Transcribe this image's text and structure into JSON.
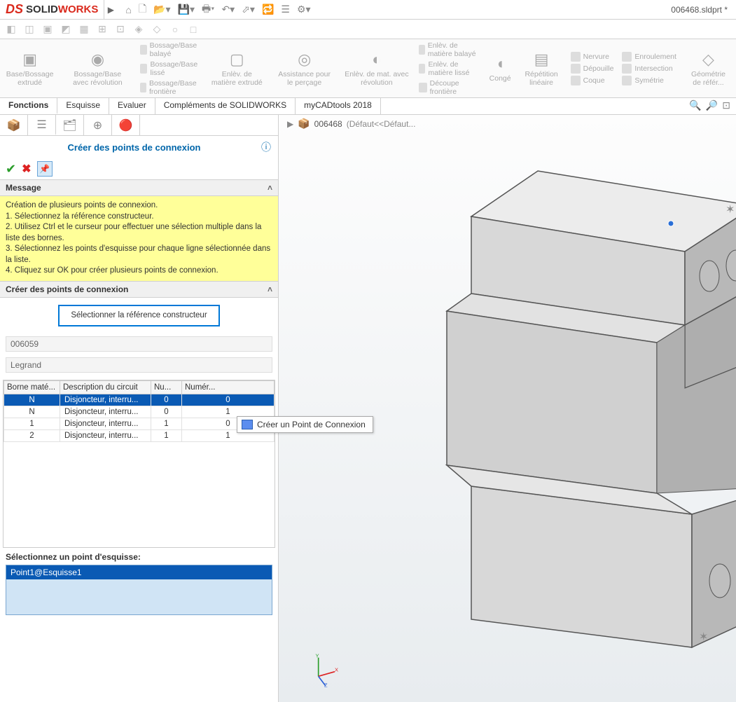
{
  "app": {
    "name_solid": "SOLID",
    "name_works": "WORKS",
    "doc": "006468.sldprt *"
  },
  "ribbon": {
    "groups": [
      {
        "label": "Base/Bossage extrudé"
      },
      {
        "label": "Bossage/Base avec révolution"
      }
    ],
    "lists1": [
      "Bossage/Base balayé",
      "Bossage/Base lissé",
      "Bossage/Base frontière"
    ],
    "groups2": [
      {
        "label": "Enlèv. de matière extrudé"
      },
      {
        "label": "Assistance pour le perçage"
      },
      {
        "label": "Enlèv. de mat. avec révolution"
      }
    ],
    "lists2": [
      "Enlèv. de matière balayé",
      "Enlèv. de matière lissé",
      "Découpe frontière"
    ],
    "groups3": [
      {
        "label": "Congé"
      },
      {
        "label": "Répétition linéaire"
      }
    ],
    "lists3a": [
      "Nervure",
      "Dépouille",
      "Coque"
    ],
    "lists3b": [
      "Enroulement",
      "Intersection",
      "Symétrie"
    ],
    "groups4": [
      {
        "label": "Géométrie de référ..."
      }
    ]
  },
  "tabs": {
    "items": [
      "Fonctions",
      "Esquisse",
      "Evaluer",
      "Compléments de SOLIDWORKS",
      "myCADtools 2018"
    ],
    "active": 0
  },
  "panel": {
    "title": "Créer des points de connexion",
    "message_head": "Message",
    "message_lines": [
      "Création de plusieurs points de connexion.",
      "1. Sélectionnez la référence constructeur.",
      "2. Utilisez Ctrl et le curseur pour effectuer une sélection multiple dans la liste des bornes.",
      "3. Sélectionnez les points d'esquisse pour chaque ligne sélectionnée dans la liste.",
      "4. Cliquez sur OK pour créer plusieurs points de connexion."
    ],
    "section2": "Créer des points de connexion",
    "ref_button": "Sélectionner la référence constructeur",
    "ref_code": "006059",
    "ref_mfr": "Legrand",
    "table": {
      "headers": [
        "Borne maté...",
        "Description du circuit",
        "Nu...",
        "Numér..."
      ],
      "rows": [
        {
          "b": "N",
          "d": "Disjoncteur, interru...",
          "n1": "0",
          "n2": "0",
          "selected": true
        },
        {
          "b": "N",
          "d": "Disjoncteur, interru...",
          "n1": "0",
          "n2": "1",
          "selected": false
        },
        {
          "b": "1",
          "d": "Disjoncteur, interru...",
          "n1": "1",
          "n2": "0",
          "selected": false
        },
        {
          "b": "2",
          "d": "Disjoncteur, interru...",
          "n1": "1",
          "n2": "1",
          "selected": false
        }
      ]
    },
    "sketch_label": "Sélectionnez un point d'esquisse:",
    "sketch_item": "Point1@Esquisse1"
  },
  "viewport": {
    "breadcrumb_part": "006468",
    "breadcrumb_cfg": "(Défaut<<Défaut...",
    "tooltip": "Créer un Point de Connexion",
    "triad": {
      "x": "X",
      "y": "Y",
      "z": "Z"
    }
  },
  "colors": {
    "brand_red": "#da291c",
    "select_blue": "#0a5ab4",
    "highlight_border": "#0078d7",
    "msg_bg": "#ffff99",
    "teal": "#4bc8c8",
    "part_gray": "#d8d8d8",
    "part_gray_dark": "#b8b8b8",
    "part_gray_light": "#ececec"
  }
}
